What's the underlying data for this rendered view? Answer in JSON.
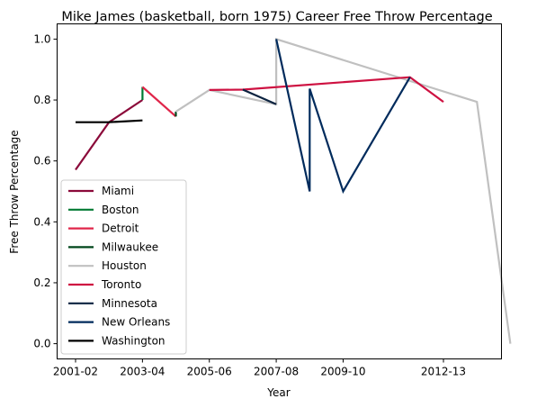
{
  "chart_data": {
    "type": "line",
    "title": "Mike James (basketball, born 1975) Career Free Throw Percentage",
    "xlabel": "Year",
    "ylabel": "Free Throw Percentage",
    "x_ticks": [
      "2001-02",
      "2003-04",
      "2005-06",
      "2007-08",
      "2009-10",
      "2012-13"
    ],
    "y_ticks": [
      "0.0",
      "0.2",
      "0.4",
      "0.6",
      "0.8",
      "1.0"
    ],
    "ylim": [
      -0.05,
      1.05
    ],
    "grid": false,
    "legend_position": "lower-left",
    "series": [
      {
        "name": "Miami",
        "color": "#8b0a3a",
        "x": [
          "2001-02",
          "2002-03",
          "2003-04"
        ],
        "y": [
          0.571,
          0.727,
          0.8
        ]
      },
      {
        "name": "Boston",
        "color": "#007a33",
        "x": [
          "2003-04",
          "2003-04"
        ],
        "y": [
          0.8,
          0.843
        ]
      },
      {
        "name": "Detroit",
        "color": "#e0264a",
        "x": [
          "2003-04",
          "2004-05"
        ],
        "y": [
          0.843,
          0.746
        ]
      },
      {
        "name": "Milwaukee",
        "color": "#00471b",
        "x": [
          "2004-05",
          "2004-05"
        ],
        "y": [
          0.746,
          0.762
        ]
      },
      {
        "name": "Houston",
        "color": "#c0c0c0",
        "x": [
          "2004-05",
          "2005-06",
          "2007-08",
          "2007-08",
          "2013-14",
          "2014-15"
        ],
        "y": [
          0.762,
          0.833,
          0.786,
          1.0,
          0.794,
          0.0
        ]
      },
      {
        "name": "Toronto",
        "color": "#ce1141",
        "x": [
          "2005-06",
          "2006-07",
          "2011-12",
          "2012-13"
        ],
        "y": [
          0.833,
          0.834,
          0.875,
          0.794
        ]
      },
      {
        "name": "Minnesota",
        "color": "#0c2340",
        "x": [
          "2006-07",
          "2007-08"
        ],
        "y": [
          0.834,
          0.786
        ]
      },
      {
        "name": "New Orleans",
        "color": "#002b5c",
        "x": [
          "2007-08",
          "2008-09",
          "2008-09",
          "2009-10",
          "2011-12"
        ],
        "y": [
          1.0,
          0.5,
          0.837,
          0.5,
          0.875
        ]
      },
      {
        "name": "Washington",
        "color": "#000000",
        "x": [
          "2001-02",
          "2002-03",
          "2003-04"
        ],
        "y": [
          0.727,
          0.727,
          0.733
        ]
      }
    ]
  }
}
